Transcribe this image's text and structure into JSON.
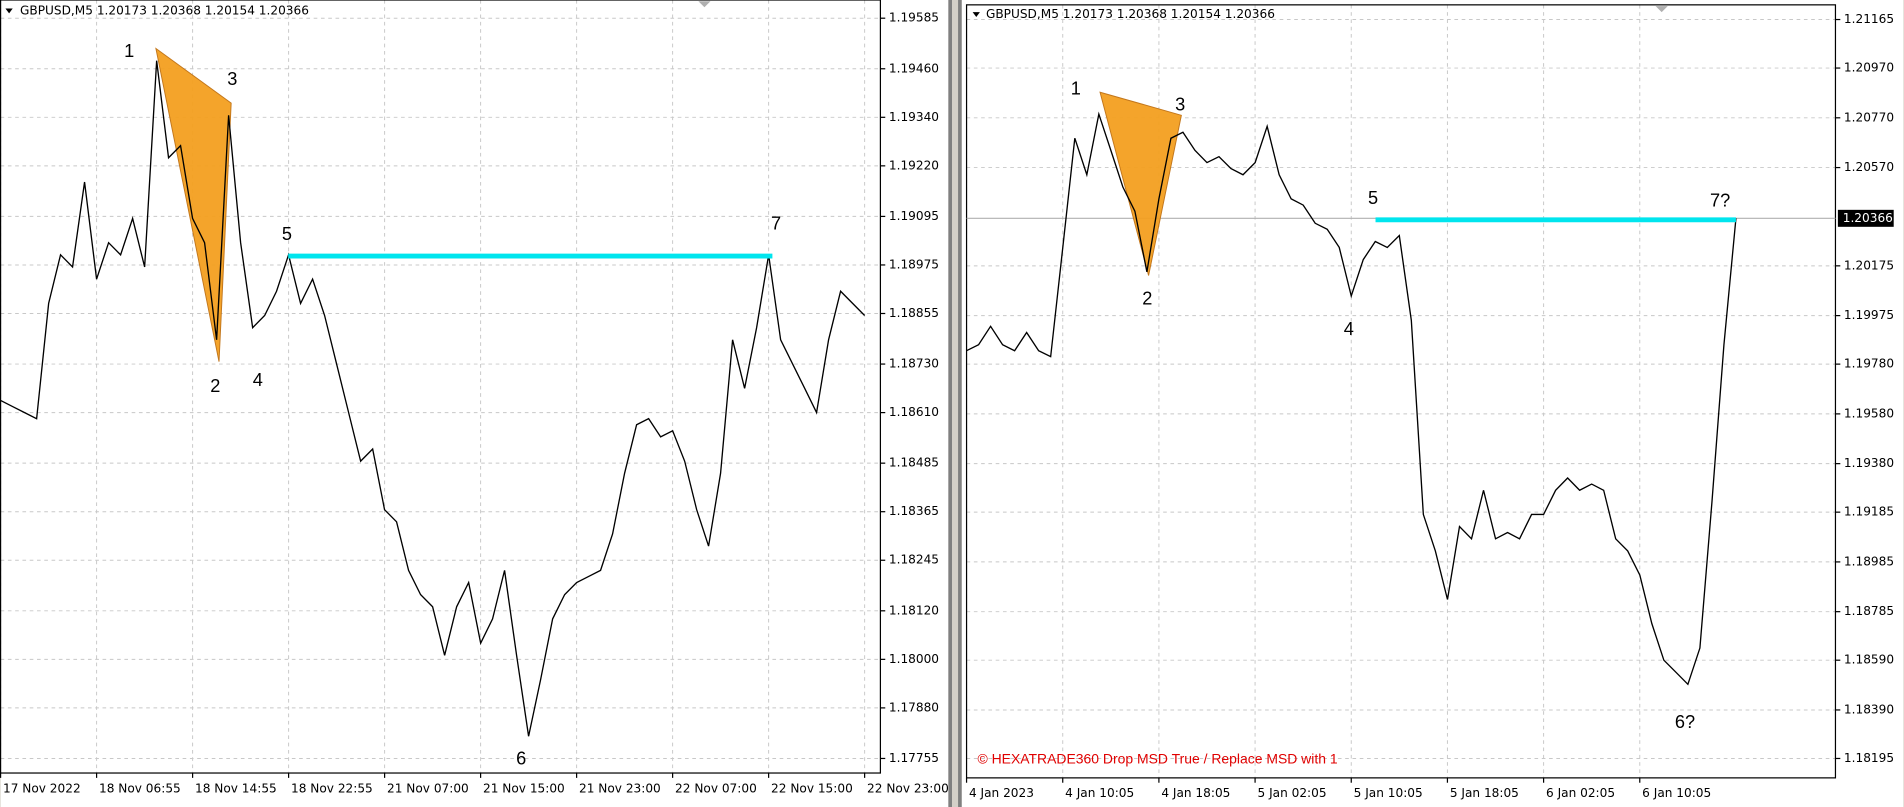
{
  "chart_data": [
    {
      "type": "line",
      "title": "GBPUSD,M5  1.20173 1.20368 1.20154 1.20366",
      "categories": [
        "17 Nov 2022",
        null,
        null,
        null,
        null,
        null,
        null,
        null,
        "18 Nov 06:55",
        null,
        null,
        null,
        null,
        null,
        null,
        null,
        "18 Nov 14:55",
        null,
        null,
        null,
        null,
        null,
        null,
        null,
        "18 Nov 22:55",
        null,
        null,
        null,
        null,
        null,
        null,
        null,
        "21 Nov 07:00",
        null,
        null,
        null,
        null,
        null,
        null,
        null,
        "21 Nov 15:00",
        null,
        null,
        null,
        null,
        null,
        null,
        null,
        "21 Nov 23:00",
        null,
        null,
        null,
        null,
        null,
        null,
        null,
        "22 Nov 07:00",
        null,
        null,
        null,
        null,
        null,
        null,
        null,
        "22 Nov 15:00",
        null,
        null,
        null,
        null,
        null,
        null,
        null,
        "22 Nov 23:00"
      ],
      "values": [
        1.1864,
        1.18625,
        1.1861,
        1.18595,
        1.1888,
        1.19,
        1.1897,
        1.1918,
        1.1894,
        1.1903,
        1.19,
        1.1909,
        1.1897,
        1.1948,
        1.1924,
        1.1927,
        1.1909,
        1.1903,
        1.1879,
        1.19345,
        1.1903,
        1.1882,
        1.1885,
        1.1891,
        1.19,
        1.1888,
        1.1894,
        1.1885,
        1.1873,
        1.1861,
        1.1849,
        1.1852,
        1.1837,
        1.1834,
        1.1822,
        1.1816,
        1.1813,
        1.1801,
        1.1813,
        1.1819,
        1.1804,
        1.181,
        1.1822,
        1.1801,
        1.1781,
        1.1795,
        1.181,
        1.1816,
        1.1819,
        1.18205,
        1.1822,
        1.1831,
        1.1846,
        1.1858,
        1.18595,
        1.1855,
        1.18565,
        1.1849,
        1.1837,
        1.1828,
        1.1846,
        1.1879,
        1.1867,
        1.1882,
        1.19,
        1.1879,
        1.1873,
        1.1867,
        1.1861,
        1.1879,
        1.1891,
        1.1888,
        1.1885
      ],
      "color": "#000000",
      "ylim": [
        1.17719,
        1.1963
      ],
      "yticks": [
        1.19585,
        {
          "value": 1.1946,
          "label": "1.19460"
        },
        {
          "value": 1.1934,
          "label": "1.19340"
        },
        {
          "value": 1.1922,
          "label": "1.19220"
        },
        1.19095,
        1.18975,
        1.18855,
        {
          "value": 1.1873,
          "label": "1.18730"
        },
        {
          "value": 1.1861,
          "label": "1.18610"
        },
        1.18485,
        1.18365,
        1.18245,
        {
          "value": 1.1812,
          "label": "1.18120"
        },
        {
          "value": 1.18,
          "label": "1.18000"
        },
        {
          "value": 1.1788,
          "label": "1.17880"
        },
        1.17755
      ],
      "grid": true,
      "annotations": [
        "1",
        "2",
        "3",
        "4",
        "5",
        "6",
        "7"
      ],
      "pattern_color": "#f4a020",
      "level": {
        "value": 1.18997,
        "color": "#00e5ee"
      }
    },
    {
      "type": "line",
      "title": "GBPUSD,M5  1.20173 1.20368 1.20154 1.20366",
      "categories": [
        "4 Jan 2023",
        null,
        null,
        null,
        null,
        null,
        null,
        null,
        "4 Jan 10:05",
        null,
        null,
        null,
        null,
        null,
        null,
        null,
        "4 Jan 18:05",
        null,
        null,
        null,
        null,
        null,
        null,
        null,
        "5 Jan 02:05",
        null,
        null,
        null,
        null,
        null,
        null,
        null,
        "5 Jan 10:05",
        null,
        null,
        null,
        null,
        null,
        null,
        null,
        "5 Jan 18:05",
        null,
        null,
        null,
        null,
        null,
        null,
        null,
        "6 Jan 02:05",
        null,
        null,
        null,
        null,
        null,
        null,
        null,
        "6 Jan 10:05",
        null,
        null,
        null,
        null,
        null,
        null,
        null,
        null
      ],
      "values": [
        1.19834,
        1.19858,
        1.19932,
        1.19858,
        1.19834,
        1.19907,
        1.19834,
        1.1981,
        1.20249,
        1.20688,
        1.20541,
        1.20785,
        1.20639,
        1.20492,
        1.20395,
        1.20151,
        1.20444,
        1.20688,
        1.20712,
        1.20639,
        1.2059,
        1.20614,
        1.20566,
        1.20541,
        1.2059,
        1.20736,
        1.20541,
        1.20444,
        1.20419,
        1.20346,
        1.20322,
        1.20249,
        1.20054,
        1.202,
        1.20273,
        1.20249,
        1.20297,
        1.19956,
        1.19176,
        1.19029,
        1.18834,
        1.19127,
        1.19078,
        1.19273,
        1.19078,
        1.19103,
        1.19078,
        1.19176,
        1.19176,
        1.19273,
        1.19322,
        1.19273,
        1.19298,
        1.19273,
        1.19078,
        1.19029,
        1.18932,
        1.18737,
        1.1859,
        1.18542,
        1.18493,
        1.18639,
        1.19224,
        1.19858,
        1.20366
      ],
      "color": "#000000",
      "ylim": [
        1.18117,
        1.21224
      ],
      "yticks": [
        1.21165,
        {
          "value": 1.2097,
          "label": "1.20970"
        },
        {
          "value": 1.2077,
          "label": "1.20770"
        },
        {
          "value": 1.2057,
          "label": "1.20570"
        },
        1.20175,
        1.19975,
        {
          "value": 1.1978,
          "label": "1.19780"
        },
        {
          "value": 1.1958,
          "label": "1.19580"
        },
        {
          "value": 1.1938,
          "label": "1.19380"
        },
        1.19185,
        1.18985,
        1.18785,
        {
          "value": 1.1859,
          "label": "1.18590"
        },
        {
          "value": 1.1839,
          "label": "1.18390"
        },
        1.18195
      ],
      "grid": true,
      "annotations": [
        "1",
        "2",
        "3",
        "4",
        "5",
        "6?",
        "7?"
      ],
      "pattern_color": "#f4a020",
      "level": {
        "value": 1.2036,
        "color": "#00e5ee"
      },
      "current_price": 1.20366,
      "footer": "© HEXATRADE360 Drop MSD True  / Replace MSD with 1"
    }
  ]
}
